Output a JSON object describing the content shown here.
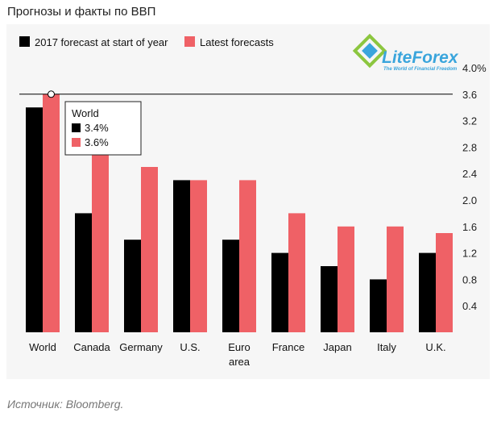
{
  "header": {
    "title": "Прогнозы и факты по ВВП"
  },
  "footer": {
    "source": "Источник: Bloomberg."
  },
  "logo": {
    "name": "LiteForex",
    "tagline": "The World of Financial Freedom"
  },
  "tooltip": {
    "title": "World",
    "rows": [
      "3.4%",
      "3.6%"
    ]
  },
  "chart_data": {
    "type": "bar",
    "categories": [
      "World",
      "Canada",
      "Germany",
      "U.S.",
      "Euro area",
      "France",
      "Japan",
      "Italy",
      "U.K."
    ],
    "series": [
      {
        "name": "2017 forecast at start of year",
        "color": "#000000",
        "values": [
          3.4,
          1.8,
          1.4,
          2.3,
          1.4,
          1.2,
          1.0,
          0.8,
          1.2
        ]
      },
      {
        "name": "Latest forecasts",
        "color": "#ef6166",
        "values": [
          3.6,
          2.7,
          2.5,
          2.3,
          2.3,
          1.8,
          1.6,
          1.6,
          1.5
        ]
      }
    ],
    "ylim": [
      0,
      4.0
    ],
    "yticks": [
      "0.4",
      "0.8",
      "1.2",
      "1.6",
      "2.0",
      "2.4",
      "2.8",
      "3.2",
      "3.6",
      "4.0%"
    ],
    "ytick_values": [
      0.4,
      0.8,
      1.2,
      1.6,
      2.0,
      2.4,
      2.8,
      3.2,
      3.6,
      4.0
    ],
    "reference_line": 3.6,
    "legend_position": "top-left",
    "grid": false
  }
}
